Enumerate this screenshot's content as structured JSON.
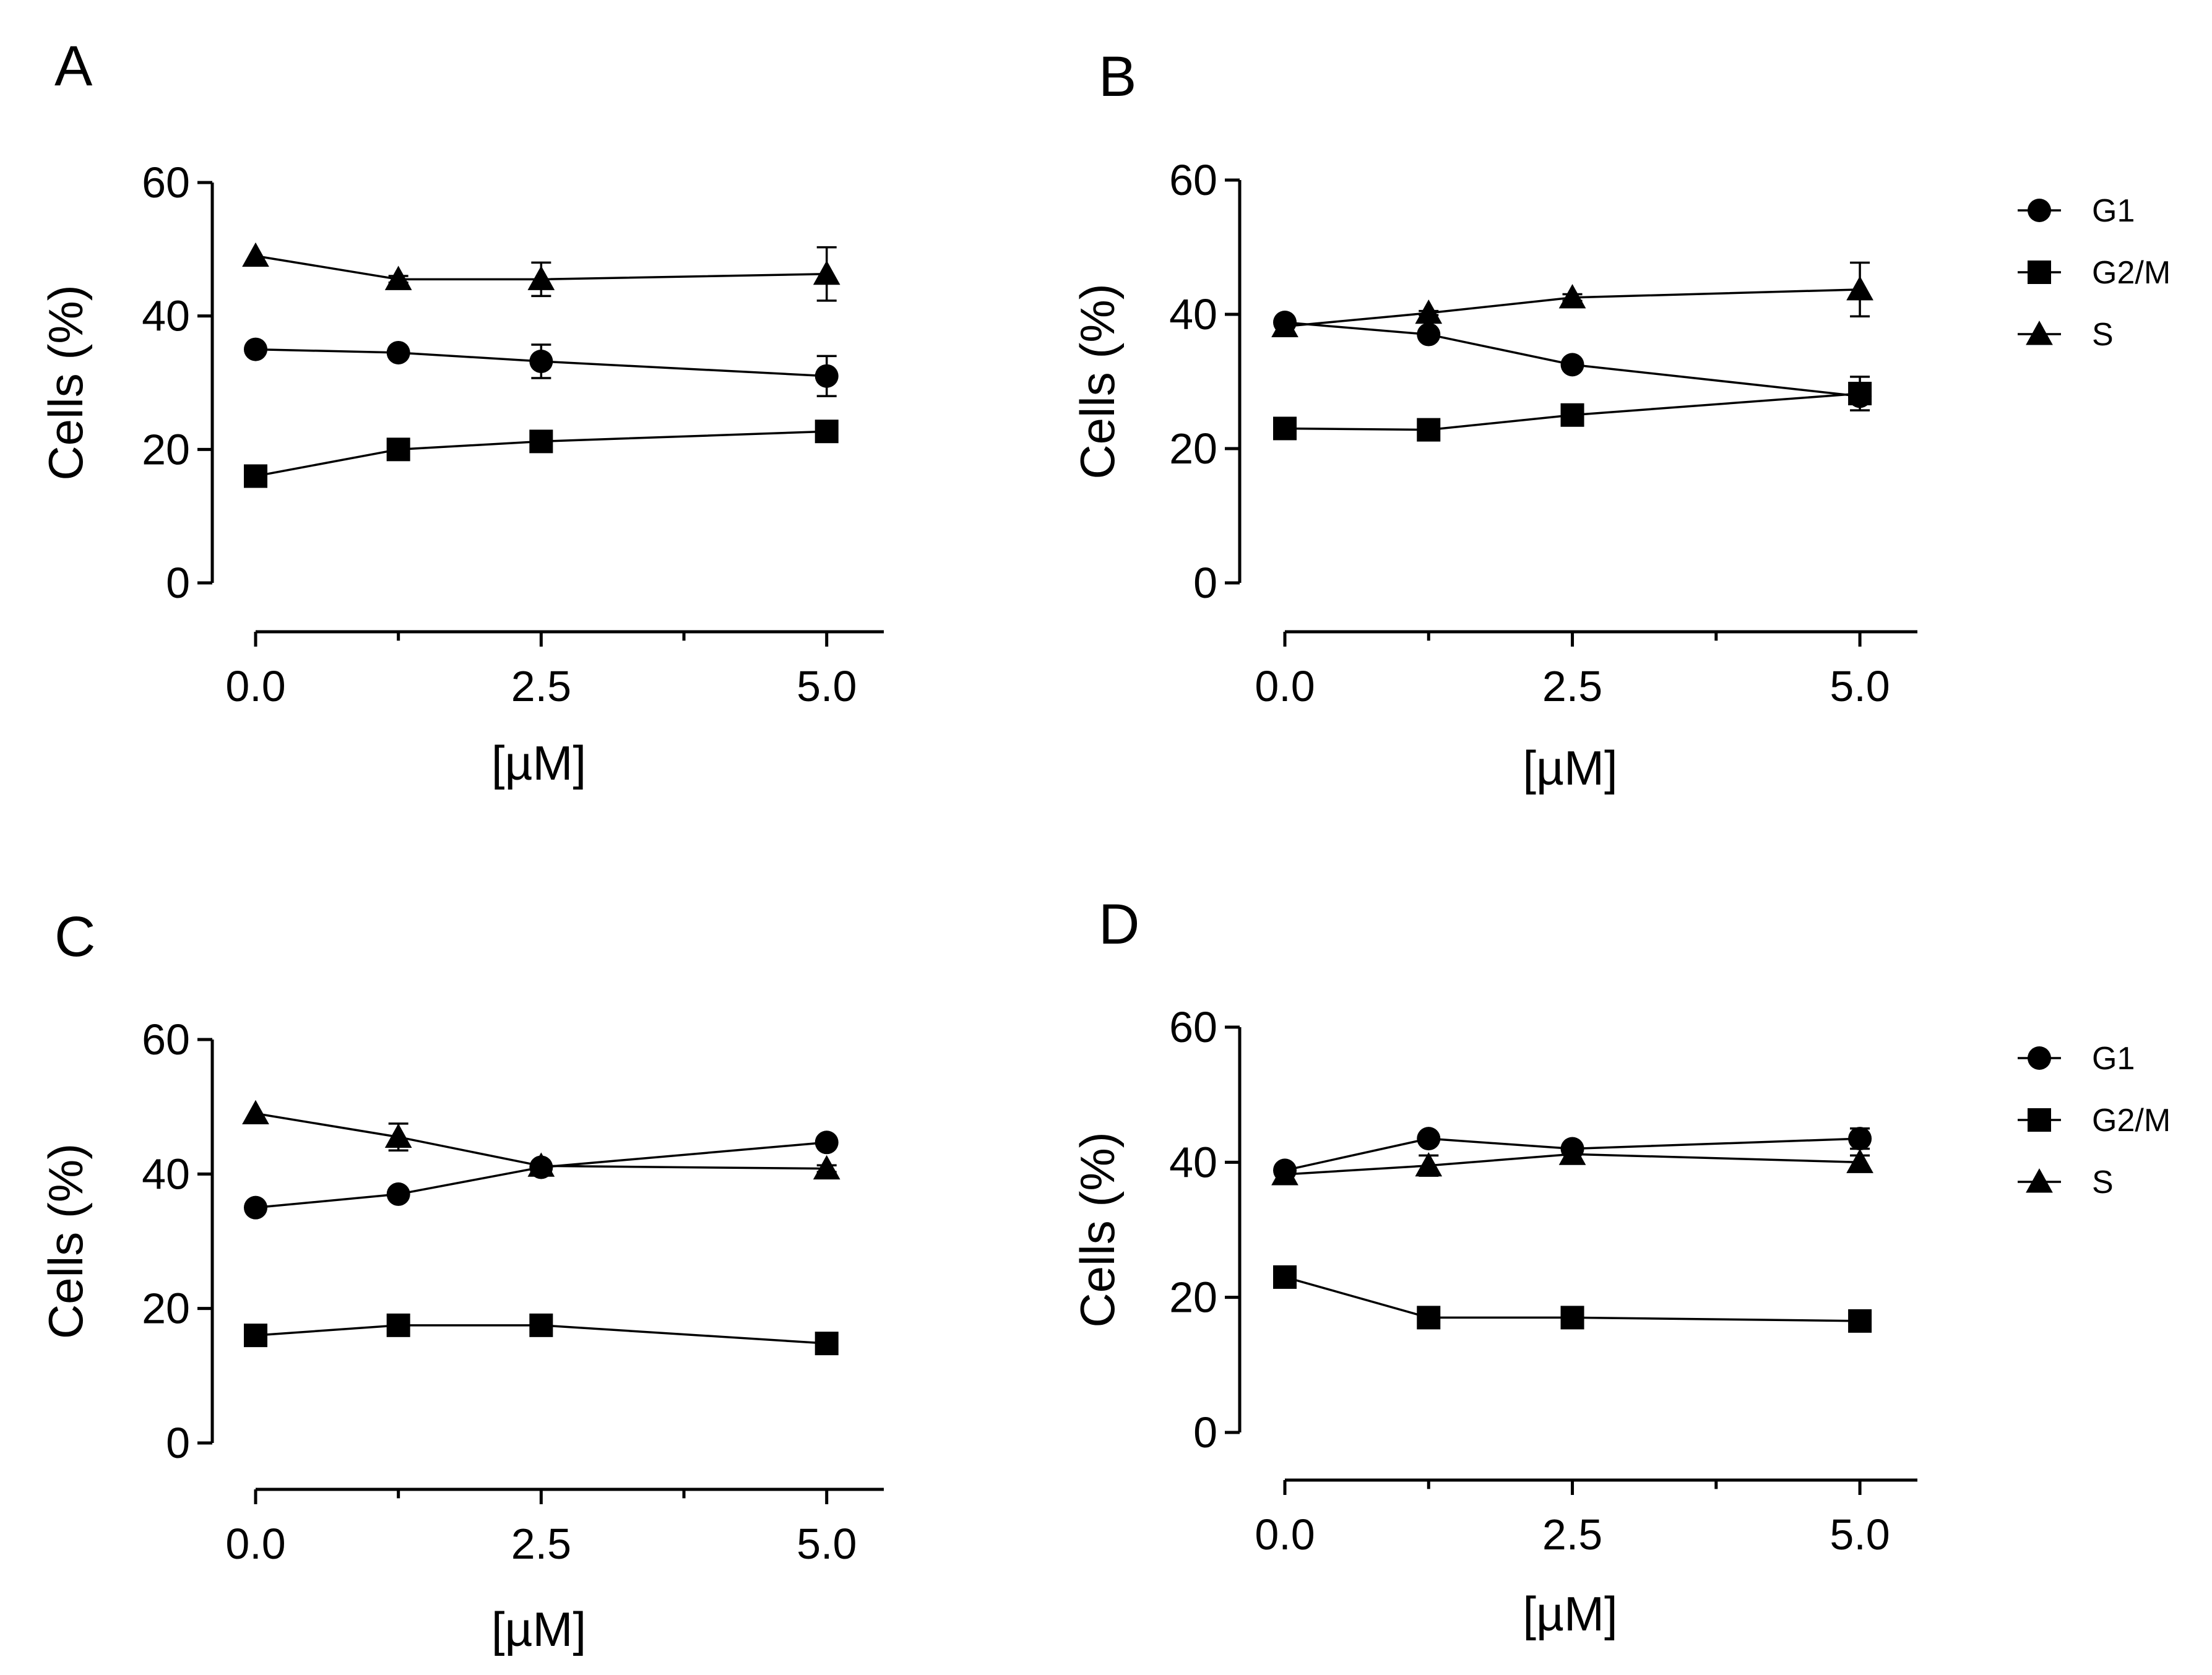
{
  "chart_data": [
    {
      "type": "line",
      "panel": "A",
      "xlabel": "[µM]",
      "ylabel": "Cells (%)",
      "xlim": [
        0,
        5.5
      ],
      "ylim": [
        0,
        60
      ],
      "xticks": [
        "0.0",
        "2.5",
        "5.0"
      ],
      "yticks": [
        "0",
        "20",
        "40",
        "60"
      ],
      "x": [
        0,
        1.25,
        2.5,
        5
      ],
      "legend": null,
      "series": [
        {
          "name": "G1",
          "marker": "circle",
          "values": [
            35,
            34.5,
            33.2,
            31
          ],
          "errors": [
            0,
            0.5,
            2.5,
            3
          ]
        },
        {
          "name": "G2/M",
          "marker": "square",
          "values": [
            16,
            20,
            21.2,
            22.7
          ],
          "errors": [
            0,
            0.3,
            0.5,
            0.6
          ]
        },
        {
          "name": "S",
          "marker": "triangle",
          "values": [
            49,
            45.5,
            45.5,
            46.3
          ],
          "errors": [
            0,
            0.5,
            2.5,
            4
          ]
        }
      ]
    },
    {
      "type": "line",
      "panel": "B",
      "xlabel": "[µM]",
      "ylabel": "Cells (%)",
      "xlim": [
        0,
        5.5
      ],
      "ylim": [
        0,
        60
      ],
      "xticks": [
        "0.0",
        "2.5",
        "5.0"
      ],
      "yticks": [
        "0",
        "20",
        "40",
        "60"
      ],
      "x": [
        0,
        1.25,
        2.5,
        5
      ],
      "legend": "right",
      "series": [
        {
          "name": "G1",
          "marker": "circle",
          "values": [
            38.8,
            37,
            32.5,
            27.8
          ],
          "errors": [
            0,
            0.5,
            0.5,
            0.8
          ]
        },
        {
          "name": "G2/M",
          "marker": "square",
          "values": [
            23,
            22.8,
            25,
            28.2
          ],
          "errors": [
            0,
            0.3,
            0.3,
            2.5
          ]
        },
        {
          "name": "S",
          "marker": "triangle",
          "values": [
            38.2,
            40.2,
            42.5,
            43.7
          ],
          "errors": [
            0,
            0.3,
            0.5,
            4
          ]
        }
      ]
    },
    {
      "type": "line",
      "panel": "C",
      "xlabel": "[µM]",
      "ylabel": "Cells (%)",
      "xlim": [
        0,
        5.5
      ],
      "ylim": [
        0,
        60
      ],
      "xticks": [
        "0.0",
        "2.5",
        "5.0"
      ],
      "yticks": [
        "0",
        "20",
        "40",
        "60"
      ],
      "x": [
        0,
        1.25,
        2.5,
        5
      ],
      "legend": null,
      "series": [
        {
          "name": "G1",
          "marker": "circle",
          "values": [
            35,
            37,
            41,
            44.7
          ],
          "errors": [
            0,
            0.3,
            0.5,
            0.5
          ]
        },
        {
          "name": "G2/M",
          "marker": "square",
          "values": [
            16,
            17.5,
            17.5,
            14.8
          ],
          "errors": [
            0,
            0.3,
            0.3,
            0.3
          ]
        },
        {
          "name": "S",
          "marker": "triangle",
          "values": [
            49,
            45.5,
            41.2,
            40.8
          ],
          "errors": [
            0,
            2,
            0.5,
            0.5
          ]
        }
      ]
    },
    {
      "type": "line",
      "panel": "D",
      "xlabel": "[µM]",
      "ylabel": "Cells (%)",
      "xlim": [
        0,
        5.5
      ],
      "ylim": [
        0,
        60
      ],
      "xticks": [
        "0.0",
        "2.5",
        "5.0"
      ],
      "yticks": [
        "0",
        "20",
        "40",
        "60"
      ],
      "x": [
        0,
        1.25,
        2.5,
        5
      ],
      "legend": "right",
      "series": [
        {
          "name": "G1",
          "marker": "circle",
          "values": [
            38.8,
            43.5,
            42,
            43.5
          ],
          "errors": [
            0,
            0.5,
            0.5,
            1.5
          ]
        },
        {
          "name": "G2/M",
          "marker": "square",
          "values": [
            23,
            17,
            17,
            16.5
          ],
          "errors": [
            0,
            0.3,
            0.3,
            1.5
          ]
        },
        {
          "name": "S",
          "marker": "triangle",
          "values": [
            38.2,
            39.5,
            41.2,
            40
          ],
          "errors": [
            0,
            1.5,
            0.8,
            1
          ]
        }
      ]
    }
  ]
}
